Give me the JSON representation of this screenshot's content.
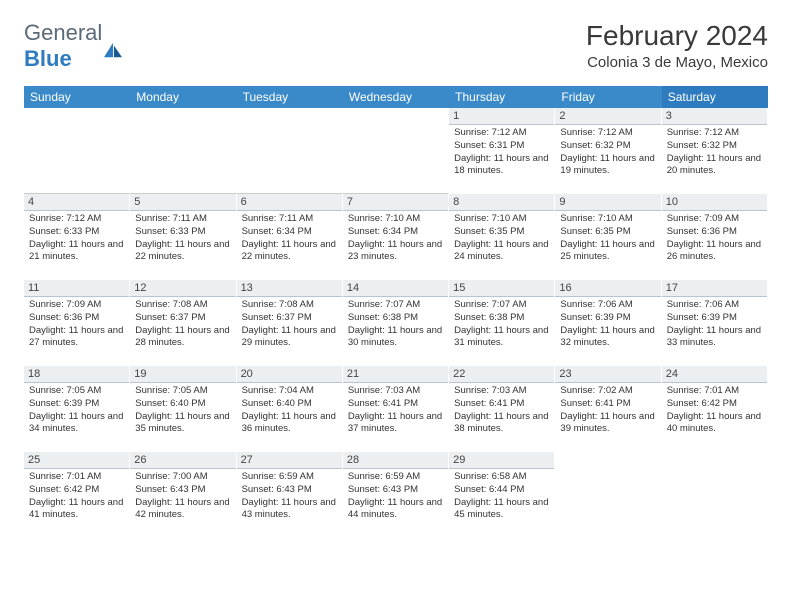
{
  "logo": {
    "part1": "General",
    "part2": "Blue"
  },
  "title": "February 2024",
  "location": "Colonia 3 de Mayo, Mexico",
  "header_bg": "#3a8ac9",
  "header_accent_bg": "#2e7cbf",
  "daynum_bg": "#eceff1",
  "daynum_border": "#b8c4d0",
  "text_color": "#333333",
  "weekdays": [
    "Sunday",
    "Monday",
    "Tuesday",
    "Wednesday",
    "Thursday",
    "Friday",
    "Saturday"
  ],
  "leading_blanks": 4,
  "days": [
    {
      "n": 1,
      "sunrise": "7:12 AM",
      "sunset": "6:31 PM",
      "daylight": "11 hours and 18 minutes."
    },
    {
      "n": 2,
      "sunrise": "7:12 AM",
      "sunset": "6:32 PM",
      "daylight": "11 hours and 19 minutes."
    },
    {
      "n": 3,
      "sunrise": "7:12 AM",
      "sunset": "6:32 PM",
      "daylight": "11 hours and 20 minutes."
    },
    {
      "n": 4,
      "sunrise": "7:12 AM",
      "sunset": "6:33 PM",
      "daylight": "11 hours and 21 minutes."
    },
    {
      "n": 5,
      "sunrise": "7:11 AM",
      "sunset": "6:33 PM",
      "daylight": "11 hours and 22 minutes."
    },
    {
      "n": 6,
      "sunrise": "7:11 AM",
      "sunset": "6:34 PM",
      "daylight": "11 hours and 22 minutes."
    },
    {
      "n": 7,
      "sunrise": "7:10 AM",
      "sunset": "6:34 PM",
      "daylight": "11 hours and 23 minutes."
    },
    {
      "n": 8,
      "sunrise": "7:10 AM",
      "sunset": "6:35 PM",
      "daylight": "11 hours and 24 minutes."
    },
    {
      "n": 9,
      "sunrise": "7:10 AM",
      "sunset": "6:35 PM",
      "daylight": "11 hours and 25 minutes."
    },
    {
      "n": 10,
      "sunrise": "7:09 AM",
      "sunset": "6:36 PM",
      "daylight": "11 hours and 26 minutes."
    },
    {
      "n": 11,
      "sunrise": "7:09 AM",
      "sunset": "6:36 PM",
      "daylight": "11 hours and 27 minutes."
    },
    {
      "n": 12,
      "sunrise": "7:08 AM",
      "sunset": "6:37 PM",
      "daylight": "11 hours and 28 minutes."
    },
    {
      "n": 13,
      "sunrise": "7:08 AM",
      "sunset": "6:37 PM",
      "daylight": "11 hours and 29 minutes."
    },
    {
      "n": 14,
      "sunrise": "7:07 AM",
      "sunset": "6:38 PM",
      "daylight": "11 hours and 30 minutes."
    },
    {
      "n": 15,
      "sunrise": "7:07 AM",
      "sunset": "6:38 PM",
      "daylight": "11 hours and 31 minutes."
    },
    {
      "n": 16,
      "sunrise": "7:06 AM",
      "sunset": "6:39 PM",
      "daylight": "11 hours and 32 minutes."
    },
    {
      "n": 17,
      "sunrise": "7:06 AM",
      "sunset": "6:39 PM",
      "daylight": "11 hours and 33 minutes."
    },
    {
      "n": 18,
      "sunrise": "7:05 AM",
      "sunset": "6:39 PM",
      "daylight": "11 hours and 34 minutes."
    },
    {
      "n": 19,
      "sunrise": "7:05 AM",
      "sunset": "6:40 PM",
      "daylight": "11 hours and 35 minutes."
    },
    {
      "n": 20,
      "sunrise": "7:04 AM",
      "sunset": "6:40 PM",
      "daylight": "11 hours and 36 minutes."
    },
    {
      "n": 21,
      "sunrise": "7:03 AM",
      "sunset": "6:41 PM",
      "daylight": "11 hours and 37 minutes."
    },
    {
      "n": 22,
      "sunrise": "7:03 AM",
      "sunset": "6:41 PM",
      "daylight": "11 hours and 38 minutes."
    },
    {
      "n": 23,
      "sunrise": "7:02 AM",
      "sunset": "6:41 PM",
      "daylight": "11 hours and 39 minutes."
    },
    {
      "n": 24,
      "sunrise": "7:01 AM",
      "sunset": "6:42 PM",
      "daylight": "11 hours and 40 minutes."
    },
    {
      "n": 25,
      "sunrise": "7:01 AM",
      "sunset": "6:42 PM",
      "daylight": "11 hours and 41 minutes."
    },
    {
      "n": 26,
      "sunrise": "7:00 AM",
      "sunset": "6:43 PM",
      "daylight": "11 hours and 42 minutes."
    },
    {
      "n": 27,
      "sunrise": "6:59 AM",
      "sunset": "6:43 PM",
      "daylight": "11 hours and 43 minutes."
    },
    {
      "n": 28,
      "sunrise": "6:59 AM",
      "sunset": "6:43 PM",
      "daylight": "11 hours and 44 minutes."
    },
    {
      "n": 29,
      "sunrise": "6:58 AM",
      "sunset": "6:44 PM",
      "daylight": "11 hours and 45 minutes."
    }
  ],
  "labels": {
    "sunrise": "Sunrise:",
    "sunset": "Sunset:",
    "daylight": "Daylight:"
  }
}
